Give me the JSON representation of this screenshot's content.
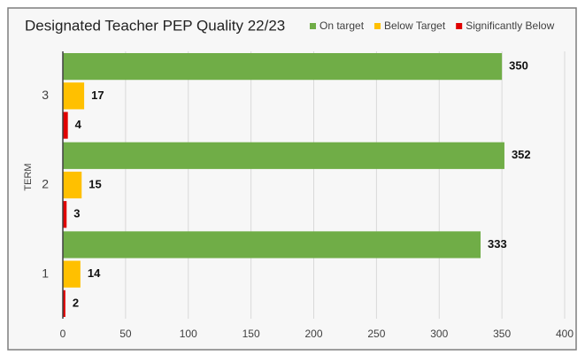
{
  "chart_data": {
    "type": "bar",
    "orientation": "horizontal",
    "title": "Designated Teacher PEP Quality 22/23",
    "y_label": "TERM",
    "categories": [
      "1",
      "2",
      "3"
    ],
    "series": [
      {
        "name": "On target",
        "color": "#70ad47",
        "values": [
          333,
          352,
          350
        ]
      },
      {
        "name": "Below Target",
        "color": "#ffc000",
        "values": [
          14,
          15,
          17
        ]
      },
      {
        "name": "Significantly Below",
        "color": "#e00000",
        "values": [
          2,
          3,
          4
        ]
      }
    ],
    "xlim": [
      0,
      400
    ],
    "xticks": [
      0,
      50,
      100,
      150,
      200,
      250,
      300,
      350,
      400
    ],
    "grid": true,
    "legend": "top",
    "data_labels": true
  }
}
